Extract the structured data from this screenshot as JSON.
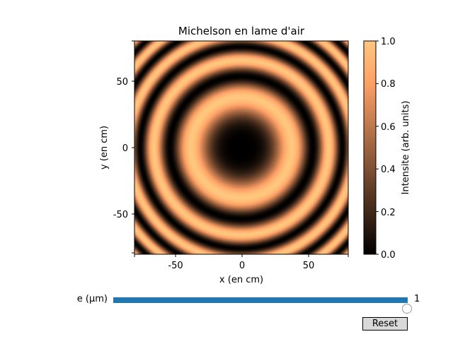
{
  "chart_data": {
    "type": "heatmap",
    "title": "Michelson en lame d'air",
    "xlabel": "x (en cm)",
    "ylabel": "y (en cm)",
    "xlim": [
      -80,
      80
    ],
    "ylim": [
      -80,
      80
    ],
    "xticks": [
      "-50",
      "0",
      "50"
    ],
    "yticks": [
      "50",
      "0",
      "-50"
    ],
    "pattern": "concentric circular interference fringes, dark at center",
    "colormap": "copper",
    "colorbar": {
      "label": "Intensite (arb. units)",
      "range": [
        0,
        1
      ],
      "ticks": [
        "1.0",
        "0.8",
        "0.6",
        "0.4",
        "0.2",
        "0.0"
      ]
    }
  },
  "slider": {
    "label": "e (μm)",
    "value": "1",
    "fraction": 1.0,
    "fill_color": "#1f77b4"
  },
  "reset_button": {
    "label": "Reset"
  }
}
